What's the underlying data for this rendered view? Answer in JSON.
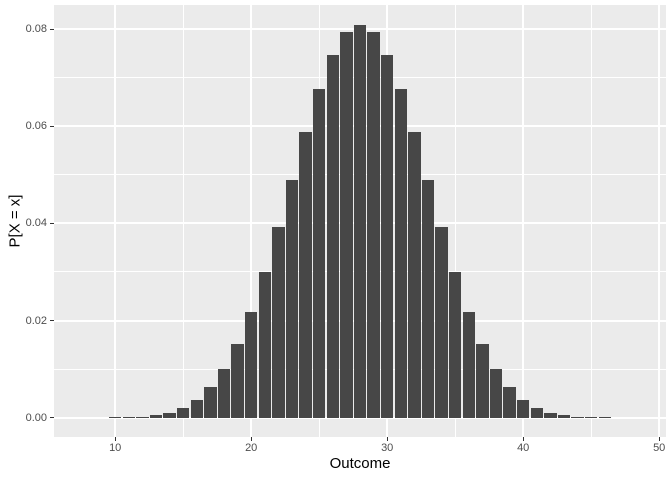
{
  "chart_data": {
    "type": "bar",
    "title": "",
    "xlabel": "Outcome",
    "ylabel": "P[X = x]",
    "x": [
      8,
      9,
      10,
      11,
      12,
      13,
      14,
      15,
      16,
      17,
      18,
      19,
      20,
      21,
      22,
      23,
      24,
      25,
      26,
      27,
      28,
      29,
      30,
      31,
      32,
      33,
      34,
      35,
      36,
      37,
      38,
      39,
      40,
      41,
      42,
      43,
      44,
      45,
      46,
      47,
      48
    ],
    "values": [
      6e-07,
      4.8e-06,
      2.14e-05,
      7.14e-05,
      0.0001965,
      0.0004715,
      0.0010169,
      0.0020052,
      0.0036598,
      0.0062395,
      0.0100071,
      0.0151749,
      0.0218431,
      0.0299402,
      0.0391804,
      0.0490493,
      0.0588307,
      0.0676869,
      0.0747718,
      0.0793561,
      0.0809435,
      0.0793561,
      0.0747718,
      0.0676869,
      0.0588307,
      0.0490493,
      0.0391804,
      0.0299402,
      0.0218431,
      0.0151749,
      0.0100071,
      0.0062395,
      0.0036598,
      0.0020052,
      0.0010169,
      0.0004715,
      0.0001965,
      7.14e-05,
      2.14e-05,
      4.8e-06,
      6e-07
    ],
    "bar_width": 0.9,
    "xlim": [
      5.5,
      50.5
    ],
    "ylim": [
      -0.004,
      0.085
    ],
    "x_ticks": [
      10,
      20,
      30,
      40,
      50
    ],
    "x_tick_labels": [
      "10",
      "20",
      "30",
      "40",
      "50"
    ],
    "x_minor_ticks": [
      15,
      25,
      35,
      45
    ],
    "y_ticks": [
      0,
      0.02,
      0.04,
      0.06,
      0.08
    ],
    "y_tick_labels": [
      "0.00",
      "0.02",
      "0.04",
      "0.06",
      "0.08"
    ],
    "y_minor_ticks": [
      0.01,
      0.03,
      0.05,
      0.07
    ],
    "grid": "major-and-minor",
    "legend": "none",
    "colors": {
      "bar": "#474747",
      "panel_background": "#EBEBEB",
      "gridline": "#FFFFFF",
      "tick_label": "#4D4D4D",
      "axis_title": "#000000",
      "tick_mark": "#333333",
      "background": "#FFFFFF"
    }
  }
}
